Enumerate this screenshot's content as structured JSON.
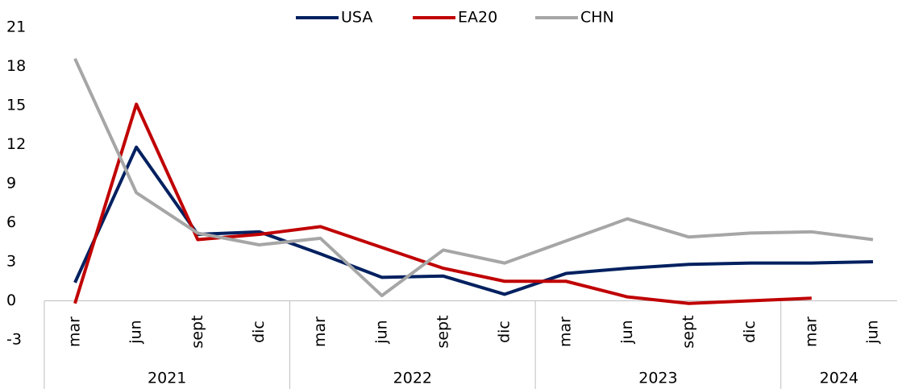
{
  "chart_data": {
    "type": "line",
    "groups": [
      {
        "label": "2021",
        "categories": [
          "mar",
          "jun",
          "sept",
          "dic"
        ]
      },
      {
        "label": "2022",
        "categories": [
          "mar",
          "jun",
          "sept",
          "dic"
        ]
      },
      {
        "label": "2023",
        "categories": [
          "mar",
          "jun",
          "sept",
          "dic"
        ]
      },
      {
        "label": "2024",
        "categories": [
          "mar",
          "jun"
        ]
      }
    ],
    "series": [
      {
        "name": "USA",
        "color": "#002060",
        "values": [
          1.4,
          11.8,
          5.1,
          5.3,
          3.6,
          1.8,
          1.9,
          0.5,
          2.1,
          2.5,
          2.8,
          2.9,
          2.9,
          3.0
        ]
      },
      {
        "name": "EA20",
        "color": "#c00000",
        "values": [
          -0.2,
          15.1,
          4.7,
          5.1,
          5.7,
          4.1,
          2.5,
          1.5,
          1.5,
          0.3,
          -0.2,
          0.0,
          0.2,
          null
        ]
      },
      {
        "name": "CHN",
        "color": "#a6a6a6",
        "values": [
          18.6,
          8.3,
          5.2,
          4.3,
          4.8,
          0.4,
          3.9,
          2.9,
          4.6,
          6.3,
          4.9,
          5.2,
          5.3,
          4.7
        ]
      }
    ],
    "ylim": [
      -3,
      21
    ],
    "yticks": [
      -3,
      0,
      3,
      6,
      9,
      12,
      15,
      18,
      21
    ],
    "legend": "top"
  }
}
